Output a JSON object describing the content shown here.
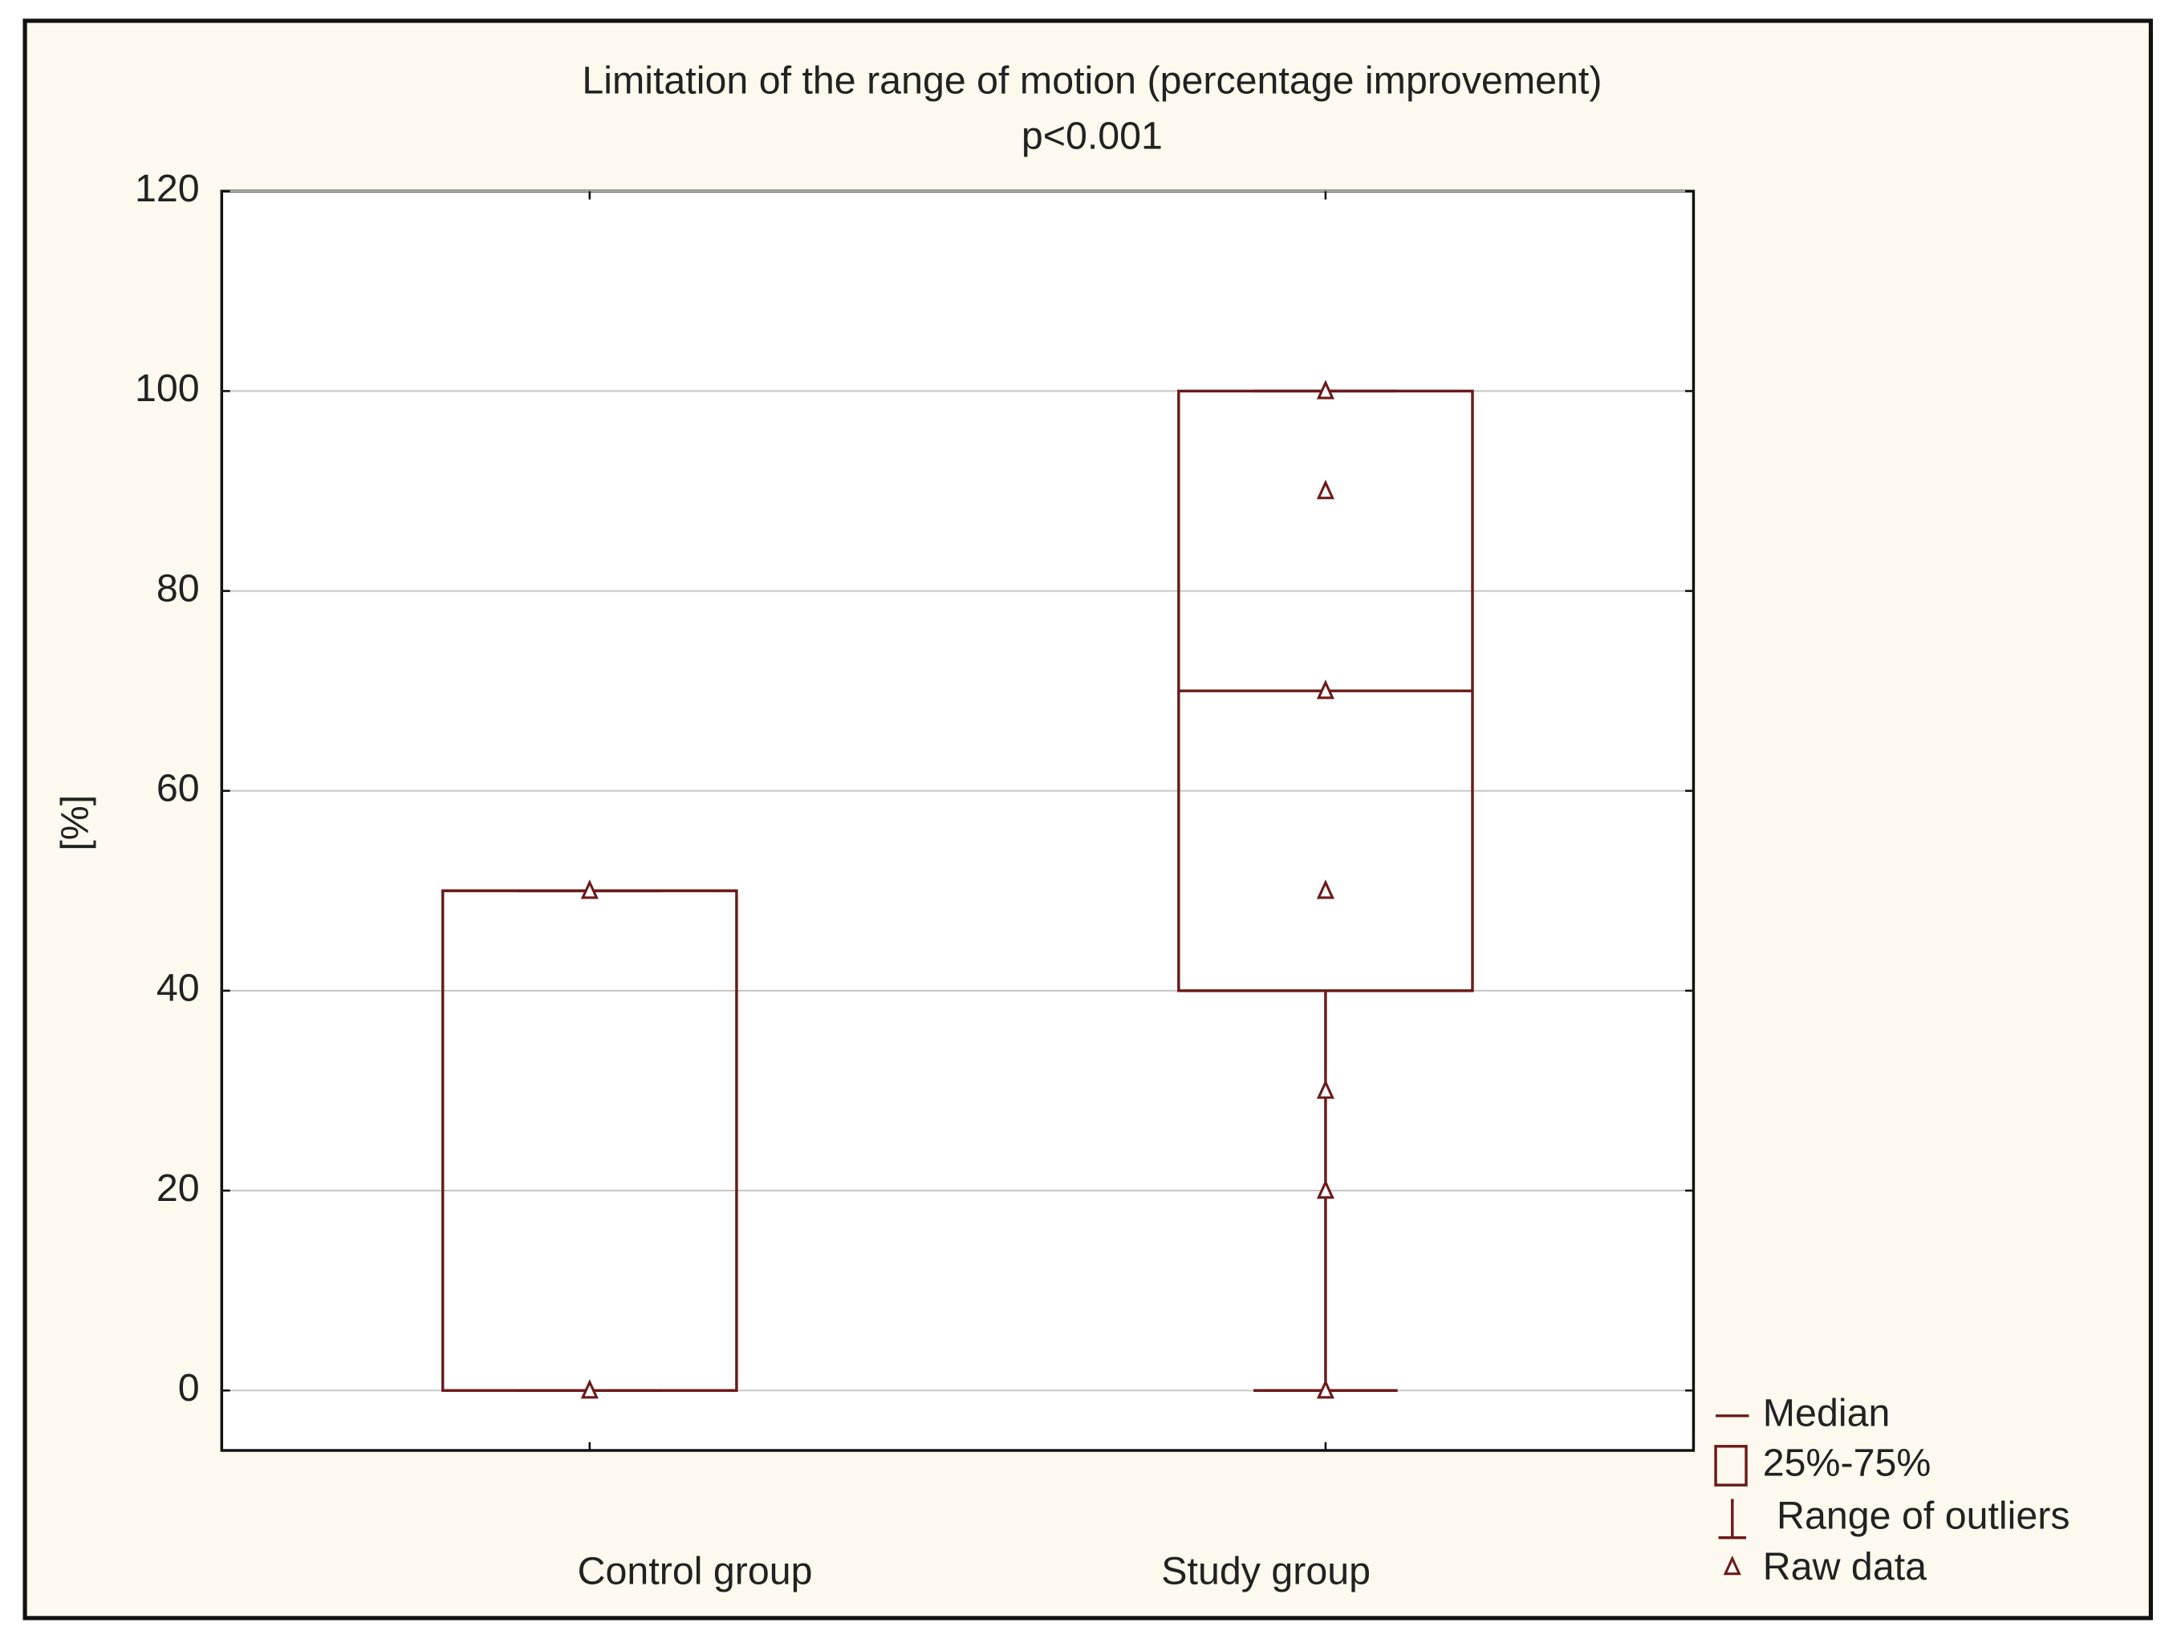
{
  "chart_data": {
    "type": "box",
    "title": "Limitation of the range of motion (percentage improvement)",
    "subtitle": "p<0.001",
    "ylabel": "[%]",
    "categories": [
      "Control group",
      "Study group"
    ],
    "boxes": [
      {
        "min": 0,
        "q1": 0,
        "median": 50,
        "q3": 50,
        "max": 50
      },
      {
        "min": 0,
        "q1": 40,
        "median": 70,
        "q3": 100,
        "max": 100
      }
    ],
    "raw_data": [
      [
        50,
        0
      ],
      [
        100,
        90,
        70,
        50,
        30,
        20,
        0
      ]
    ],
    "legend": [
      "Median",
      "25%-75%",
      "Range of outliers",
      "Raw data"
    ],
    "ylim": [
      -6,
      120
    ],
    "yticks": [
      0,
      20,
      40,
      60,
      80,
      100,
      120
    ],
    "grid": true,
    "color": "#6b1a1a",
    "subtitle_color": "#c0404a"
  }
}
